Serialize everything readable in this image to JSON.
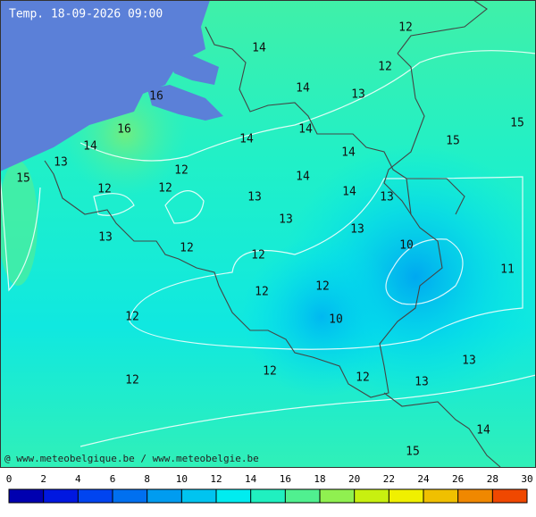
{
  "title": "Temp. 18-09-2026 09:00",
  "credit": "@ www.meteobelgique.be / www.meteobelgie.be",
  "labels": [
    12,
    14,
    12,
    14,
    13,
    16,
    15,
    16,
    14,
    14,
    15,
    14,
    14,
    13,
    12,
    15,
    14,
    12,
    12,
    14,
    13,
    13,
    13,
    13,
    13,
    10,
    12,
    12,
    11,
    12,
    12,
    12,
    10,
    13,
    12,
    12,
    12,
    13,
    14,
    15
  ],
  "colorbar": {
    "ticks": [
      0,
      2,
      4,
      6,
      8,
      10,
      12,
      14,
      16,
      18,
      20,
      22,
      24,
      26,
      28,
      30
    ],
    "colors": [
      "#0000b0",
      "#0018e0",
      "#0044f0",
      "#0070f0",
      "#009cf0",
      "#00c4f0",
      "#00ecf0",
      "#20f0c0",
      "#50f090",
      "#90f050",
      "#c8f010",
      "#f0f000",
      "#f0c000",
      "#f08800",
      "#f04800"
    ]
  }
}
